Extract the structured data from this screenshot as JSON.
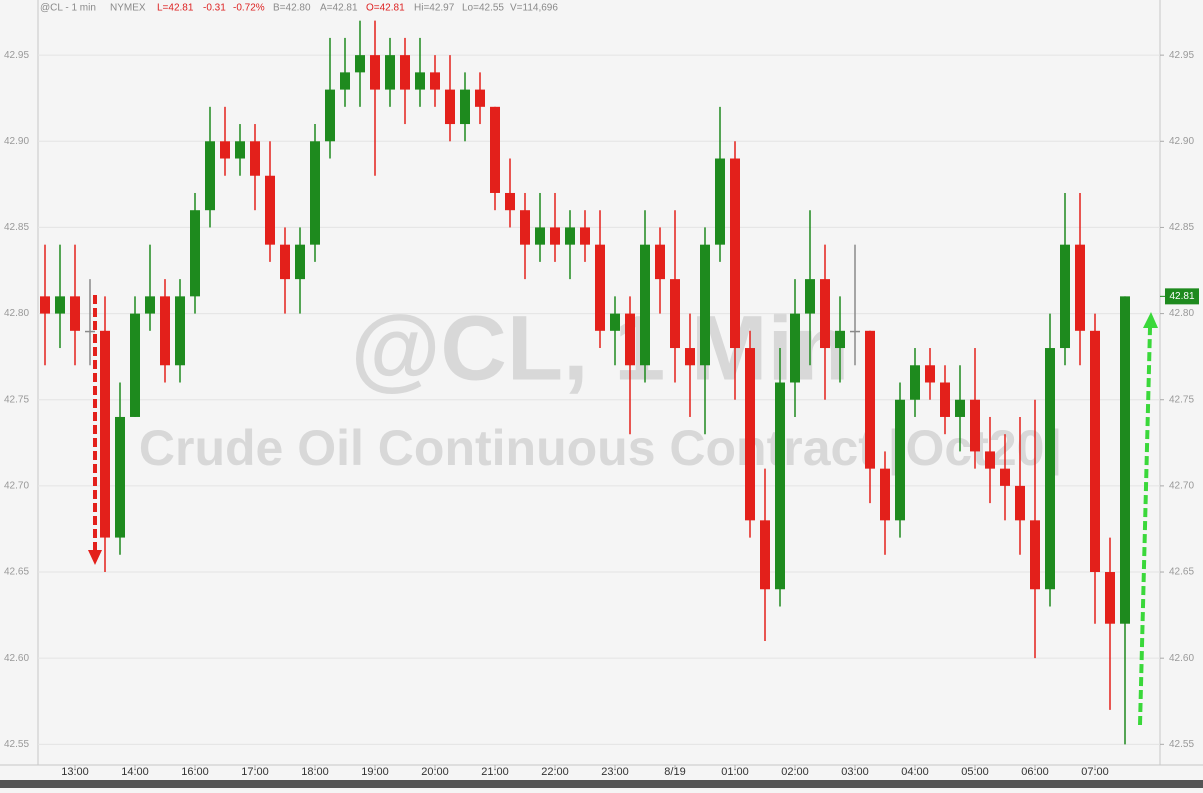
{
  "header": {
    "symbol": "@CL - 1 min",
    "exchange": "NYMEX",
    "last": "L=42.81",
    "change": "-0.31",
    "pct": "-0.72%",
    "bid": "B=42.80",
    "ask": "A=42.81",
    "open": "O=42.81",
    "high": "Hi=42.97",
    "low": "Lo=42.55",
    "volume": "V=114,696"
  },
  "watermark": {
    "line1": "@CL, 1 Min",
    "line2": "Crude Oil Continuous Contract [Oct20]"
  },
  "chart_data": {
    "type": "candlestick",
    "categories": [
      null,
      null,
      "13:00",
      null,
      null,
      null,
      "14:00",
      null,
      null,
      null,
      "16:00",
      null,
      null,
      null,
      "17:00",
      null,
      null,
      null,
      "18:00",
      null,
      null,
      null,
      "19:00",
      null,
      null,
      null,
      "20:00",
      null,
      null,
      null,
      "21:00",
      null,
      null,
      null,
      "22:00",
      null,
      null,
      null,
      "23:00",
      null,
      null,
      null,
      "8/19",
      null,
      null,
      null,
      "01:00",
      null,
      null,
      null,
      "02:00",
      null,
      null,
      null,
      "03:00",
      null,
      null,
      null,
      "04:00",
      null,
      null,
      null,
      "05:00",
      null,
      null,
      null,
      "06:00",
      null,
      null,
      null,
      "07:00",
      null,
      null
    ],
    "open": [
      42.81,
      42.8,
      42.81,
      42.79,
      42.79,
      42.67,
      42.74,
      42.8,
      42.81,
      42.77,
      42.81,
      42.86,
      42.9,
      42.89,
      42.9,
      42.88,
      42.84,
      42.82,
      42.84,
      42.9,
      42.93,
      42.94,
      42.95,
      42.93,
      42.95,
      42.93,
      42.94,
      42.93,
      42.91,
      42.93,
      42.92,
      42.87,
      42.86,
      42.84,
      42.85,
      42.84,
      42.85,
      42.84,
      42.79,
      42.8,
      42.77,
      42.84,
      42.82,
      42.78,
      42.77,
      42.84,
      42.89,
      42.78,
      42.68,
      42.64,
      42.76,
      42.8,
      42.82,
      42.78,
      42.79,
      42.79,
      42.71,
      42.68,
      42.75,
      42.77,
      42.76,
      42.74,
      42.75,
      42.72,
      42.71,
      42.7,
      42.68,
      42.64,
      42.78,
      42.84,
      42.79,
      42.65,
      42.62
    ],
    "high": [
      42.84,
      42.84,
      42.84,
      42.82,
      42.81,
      42.76,
      42.81,
      42.84,
      42.82,
      42.82,
      42.87,
      42.92,
      42.92,
      42.91,
      42.91,
      42.9,
      42.85,
      42.85,
      42.91,
      42.96,
      42.96,
      42.97,
      42.97,
      42.96,
      42.96,
      42.96,
      42.95,
      42.95,
      42.94,
      42.94,
      42.92,
      42.89,
      42.87,
      42.87,
      42.87,
      42.86,
      42.86,
      42.86,
      42.81,
      42.81,
      42.86,
      42.85,
      42.86,
      42.8,
      42.85,
      42.92,
      42.9,
      42.79,
      42.71,
      42.78,
      42.82,
      42.86,
      42.84,
      42.81,
      42.84,
      42.79,
      42.72,
      42.76,
      42.78,
      42.78,
      42.77,
      42.77,
      42.78,
      42.74,
      42.73,
      42.74,
      42.75,
      42.8,
      42.87,
      42.87,
      42.8,
      42.67,
      42.81
    ],
    "low": [
      42.77,
      42.78,
      42.77,
      42.77,
      42.65,
      42.66,
      42.74,
      42.79,
      42.76,
      42.76,
      42.8,
      42.85,
      42.88,
      42.88,
      42.86,
      42.83,
      42.8,
      42.8,
      42.83,
      42.89,
      42.92,
      42.92,
      42.88,
      42.92,
      42.91,
      42.92,
      42.92,
      42.9,
      42.9,
      42.91,
      42.86,
      42.85,
      42.82,
      42.83,
      42.83,
      42.82,
      42.83,
      42.78,
      42.77,
      42.73,
      42.76,
      42.8,
      42.76,
      42.74,
      42.73,
      42.83,
      42.75,
      42.67,
      42.61,
      42.63,
      42.74,
      42.77,
      42.75,
      42.76,
      42.77,
      42.69,
      42.66,
      42.67,
      42.74,
      42.75,
      42.73,
      42.72,
      42.71,
      42.69,
      42.68,
      42.66,
      42.6,
      42.63,
      42.77,
      42.77,
      42.62,
      42.57,
      42.55
    ],
    "close": [
      42.8,
      42.81,
      42.79,
      42.79,
      42.67,
      42.74,
      42.8,
      42.81,
      42.77,
      42.81,
      42.86,
      42.9,
      42.89,
      42.9,
      42.88,
      42.84,
      42.82,
      42.84,
      42.9,
      42.93,
      42.94,
      42.95,
      42.93,
      42.95,
      42.93,
      42.94,
      42.93,
      42.91,
      42.93,
      42.92,
      42.87,
      42.86,
      42.84,
      42.85,
      42.84,
      42.85,
      42.84,
      42.79,
      42.8,
      42.77,
      42.84,
      42.82,
      42.78,
      42.77,
      42.84,
      42.89,
      42.78,
      42.68,
      42.64,
      42.76,
      42.8,
      42.82,
      42.78,
      42.79,
      42.79,
      42.71,
      42.68,
      42.75,
      42.77,
      42.76,
      42.74,
      42.75,
      42.72,
      42.71,
      42.7,
      42.68,
      42.64,
      42.78,
      42.84,
      42.79,
      42.65,
      42.62,
      42.81
    ],
    "up_color": "#1e8a1e",
    "down_color": "#e3201b",
    "flat_color": "#8a8a8a",
    "ylim": [
      42.538,
      42.982
    ],
    "yticks": [
      42.55,
      {
        "value": 42.6,
        "label": "42.60"
      },
      42.65,
      {
        "value": 42.7,
        "label": "42.70"
      },
      42.75,
      {
        "value": 42.8,
        "label": "42.80"
      },
      42.85,
      {
        "value": 42.9,
        "label": "42.90"
      },
      42.95
    ],
    "last_price": 42.81
  }
}
